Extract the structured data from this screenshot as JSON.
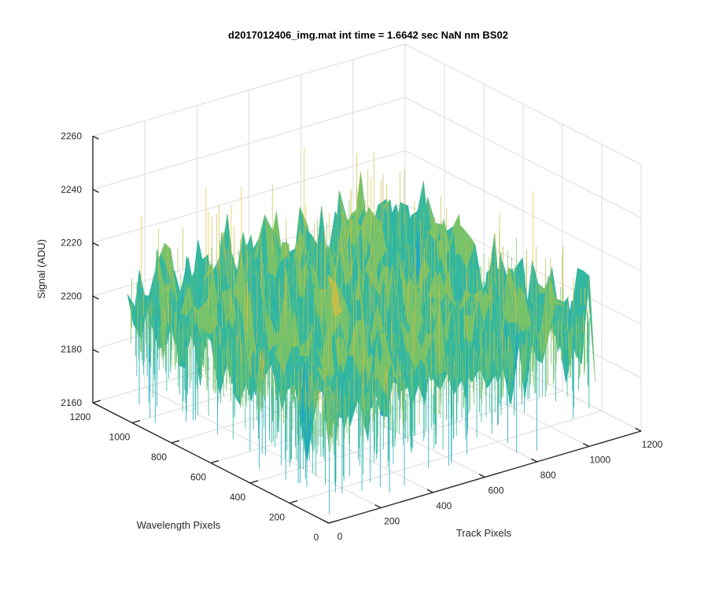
{
  "chart_data": {
    "type": "surface",
    "title": "d2017012406_img.mat int time = 1.6642 sec  NaN nm BS02",
    "xlabel": "Track Pixels",
    "ylabel": "Wavelength Pixels",
    "zlabel": "Signal (ADU)",
    "xlim": [
      0,
      1200
    ],
    "ylim": [
      0,
      1200
    ],
    "zlim": [
      2160,
      2260
    ],
    "xticks": [
      "0",
      "200",
      "400",
      "600",
      "800",
      "1000",
      "1200"
    ],
    "yticks": [
      "0",
      "200",
      "400",
      "600",
      "800",
      "1000",
      "1200"
    ],
    "zticks": [
      "2160",
      "2180",
      "2200",
      "2220",
      "2240",
      "2260"
    ],
    "data_extent": {
      "x": [
        0,
        1024
      ],
      "y": [
        0,
        1024
      ]
    },
    "signal_mean": 2205,
    "signal_range": [
      2170,
      2250
    ],
    "colormap": [
      "#1f8fd6",
      "#1fa8c4",
      "#33b7a0",
      "#78c26a",
      "#c7be48",
      "#e6c43a"
    ],
    "grid": true
  }
}
